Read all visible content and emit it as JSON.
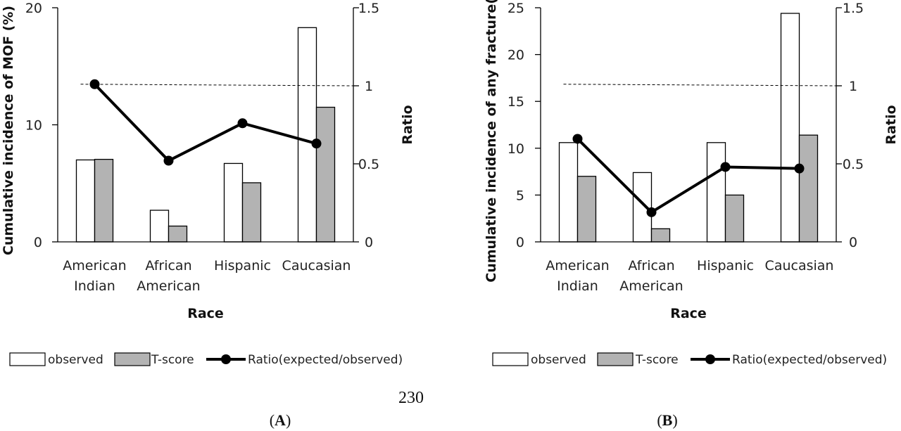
{
  "page_number": "230",
  "legend": {
    "observed": "observed",
    "tscore": "T-score",
    "ratio": "Ratio(expected/observed)"
  },
  "colors": {
    "observed_fill": "#ffffff",
    "tscore_fill": "#b3b3b3",
    "ratio_line": "#000000",
    "axis": "#000000"
  },
  "chart_data": [
    {
      "type": "bar",
      "panel_label": "A",
      "xlabel": "Race",
      "ylabel": "Cumulative incidence of MOF (%)",
      "y2label": "Ratio",
      "ylim": [
        0,
        20
      ],
      "yticks": [
        0,
        10,
        20
      ],
      "y2lim": [
        0,
        1.5
      ],
      "y2ticks": [
        "0",
        "0.5",
        "1",
        "1.5"
      ],
      "categories": [
        [
          "American",
          "Indian"
        ],
        [
          "African",
          "American"
        ],
        [
          "Hispanic"
        ],
        [
          "Caucasian"
        ]
      ],
      "series": [
        {
          "name": "observed",
          "axis": "left",
          "values": [
            7.0,
            2.7,
            6.7,
            18.3
          ]
        },
        {
          "name": "T-score",
          "axis": "left",
          "values": [
            7.05,
            1.35,
            5.05,
            11.5
          ]
        },
        {
          "name": "Ratio(expected/observed)",
          "axis": "right",
          "kind": "line",
          "values": [
            1.01,
            0.52,
            0.76,
            0.63
          ]
        }
      ],
      "reference_line": {
        "axis": "right",
        "values": [
          1.01,
          1.0
        ],
        "style": "dashed"
      },
      "grid": false,
      "legend_position": "bottom"
    },
    {
      "type": "bar",
      "panel_label": "B",
      "xlabel": "Race",
      "ylabel": "Cumulative incidence of any fracture(%)",
      "y2label": "Ratio",
      "ylim": [
        0,
        25
      ],
      "yticks": [
        0,
        5,
        10,
        15,
        20,
        25
      ],
      "y2lim": [
        0,
        1.5
      ],
      "y2ticks": [
        "0",
        "0.5",
        "1",
        "1.5"
      ],
      "categories": [
        [
          "American",
          "Indian"
        ],
        [
          "African",
          "American"
        ],
        [
          "Hispanic"
        ],
        [
          "Caucasian"
        ]
      ],
      "series": [
        {
          "name": "observed",
          "axis": "left",
          "values": [
            10.6,
            7.4,
            10.6,
            24.4
          ]
        },
        {
          "name": "T-score",
          "axis": "left",
          "values": [
            7.0,
            1.4,
            5.0,
            11.4
          ]
        },
        {
          "name": "Ratio(expected/observed)",
          "axis": "right",
          "kind": "line",
          "values": [
            0.66,
            0.19,
            0.48,
            0.47
          ]
        }
      ],
      "reference_line": {
        "axis": "right",
        "values": [
          1.01,
          1.0
        ],
        "style": "dashed"
      },
      "grid": false,
      "legend_position": "bottom"
    }
  ]
}
